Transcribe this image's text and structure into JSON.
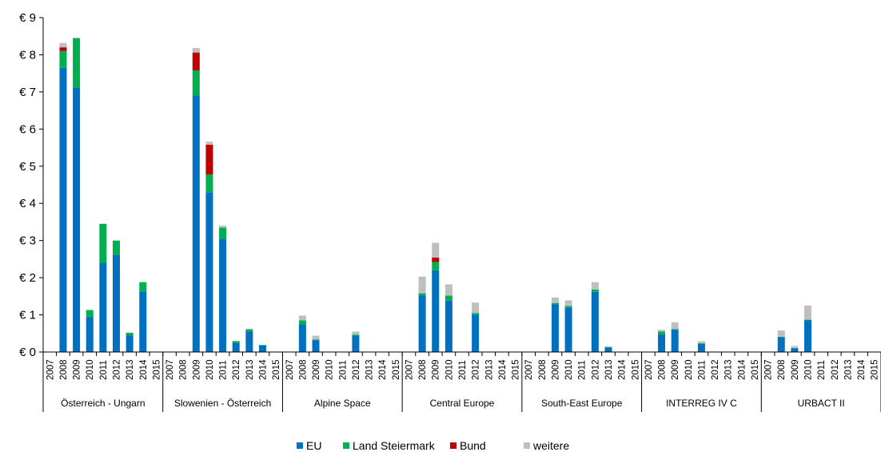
{
  "chart_data": {
    "type": "bar",
    "stacked": true,
    "title": "",
    "xlabel": "",
    "ylabel": "",
    "ylim": [
      0,
      9
    ],
    "yticks": [
      "€ 0",
      "€ 1",
      "€ 2",
      "€ 3",
      "€ 4",
      "€ 5",
      "€ 6",
      "€ 7",
      "€ 8",
      "€ 9"
    ],
    "grid": false,
    "legend_position": "bottom",
    "groups": [
      "Österreich - Ungarn",
      "Slowenien - Österreich",
      "Alpine Space",
      "Central Europe",
      "South-East Europe",
      "INTERREG IV C",
      "URBACT II"
    ],
    "years": [
      "2007",
      "2008",
      "2009",
      "2010",
      "2011",
      "2012",
      "2013",
      "2014",
      "2015"
    ],
    "series": [
      {
        "name": "EU",
        "color": "#0070c0",
        "values": [
          [
            0,
            7.65,
            7.12,
            0.95,
            2.4,
            2.62,
            0.45,
            1.63,
            0
          ],
          [
            0,
            0,
            6.9,
            4.3,
            3.05,
            0.25,
            0.55,
            0.18,
            0
          ],
          [
            0,
            0.75,
            0.32,
            0,
            0,
            0.43,
            0,
            0,
            0
          ],
          [
            0,
            1.52,
            2.2,
            1.38,
            0,
            1.0,
            0,
            0,
            0
          ],
          [
            0,
            0,
            1.28,
            1.2,
            0,
            1.62,
            0.12,
            0,
            0
          ],
          [
            0,
            0.48,
            0.6,
            0,
            0.22,
            0,
            0,
            0,
            0
          ],
          [
            0,
            0.4,
            0.1,
            0.85,
            0,
            0,
            0,
            0,
            0
          ]
        ]
      },
      {
        "name": "Land Steiermark",
        "color": "#00b050",
        "values": [
          [
            0,
            0.45,
            1.33,
            0.18,
            1.05,
            0.38,
            0.07,
            0.25,
            0
          ],
          [
            0,
            0,
            0.68,
            0.48,
            0.3,
            0.04,
            0.06,
            0.01,
            0
          ],
          [
            0,
            0.1,
            0.02,
            0,
            0,
            0.04,
            0,
            0,
            0
          ],
          [
            0,
            0.06,
            0.22,
            0.14,
            0,
            0.05,
            0,
            0,
            0
          ],
          [
            0,
            0,
            0.04,
            0.04,
            0,
            0.06,
            0.01,
            0,
            0
          ],
          [
            0,
            0.07,
            0.02,
            0,
            0.02,
            0,
            0,
            0,
            0
          ],
          [
            0,
            0.01,
            0.01,
            0.02,
            0,
            0,
            0,
            0,
            0
          ]
        ]
      },
      {
        "name": "Bund",
        "color": "#c00000",
        "values": [
          [
            0,
            0.1,
            0,
            0,
            0,
            0,
            0,
            0,
            0
          ],
          [
            0,
            0,
            0.48,
            0.8,
            0,
            0,
            0,
            0,
            0
          ],
          [
            0,
            0,
            0,
            0,
            0,
            0,
            0,
            0,
            0
          ],
          [
            0,
            0,
            0.12,
            0,
            0,
            0,
            0,
            0,
            0
          ],
          [
            0,
            0,
            0,
            0,
            0,
            0,
            0,
            0,
            0
          ],
          [
            0,
            0,
            0,
            0,
            0,
            0,
            0,
            0,
            0
          ],
          [
            0,
            0,
            0,
            0,
            0,
            0,
            0,
            0,
            0
          ]
        ]
      },
      {
        "name": "weitere",
        "color": "#bfbfbf",
        "values": [
          [
            0,
            0.12,
            0,
            0,
            0,
            0,
            0,
            0,
            0
          ],
          [
            0,
            0,
            0.12,
            0.08,
            0.05,
            0.01,
            0.02,
            0,
            0
          ],
          [
            0,
            0.13,
            0.1,
            0,
            0,
            0.08,
            0,
            0,
            0
          ],
          [
            0,
            0.45,
            0.4,
            0.3,
            0,
            0.28,
            0,
            0,
            0
          ],
          [
            0,
            0,
            0.15,
            0.15,
            0,
            0.2,
            0.02,
            0,
            0
          ],
          [
            0,
            0.05,
            0.18,
            0,
            0.05,
            0,
            0,
            0,
            0
          ],
          [
            0,
            0.17,
            0.05,
            0.38,
            0,
            0,
            0,
            0,
            0
          ]
        ]
      }
    ]
  }
}
